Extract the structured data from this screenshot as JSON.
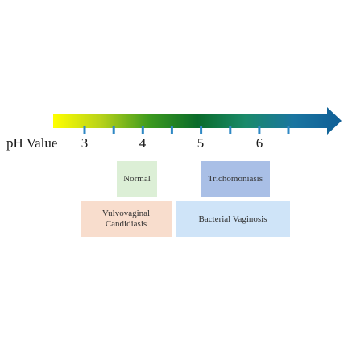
{
  "diagram": {
    "axis_label": "pH Value",
    "tick_labels": [
      "3",
      "4",
      "5",
      "6"
    ],
    "gradient_colors": [
      "#ffff00",
      "#b7d21a",
      "#3c9a1e",
      "#0a6b2a",
      "#1a8a6a",
      "#1a75a0",
      "#0f5e96"
    ],
    "conditions": [
      {
        "label": "Normal",
        "color": "#dcefd6"
      },
      {
        "label": "Trichomoniasis",
        "color": "#a9bfe6"
      },
      {
        "label": "Vulvovaginal Candidiasis",
        "color": "#f8ddcd"
      },
      {
        "label": "Bacterial Vaginosis",
        "color": "#cfe4f8"
      }
    ]
  }
}
